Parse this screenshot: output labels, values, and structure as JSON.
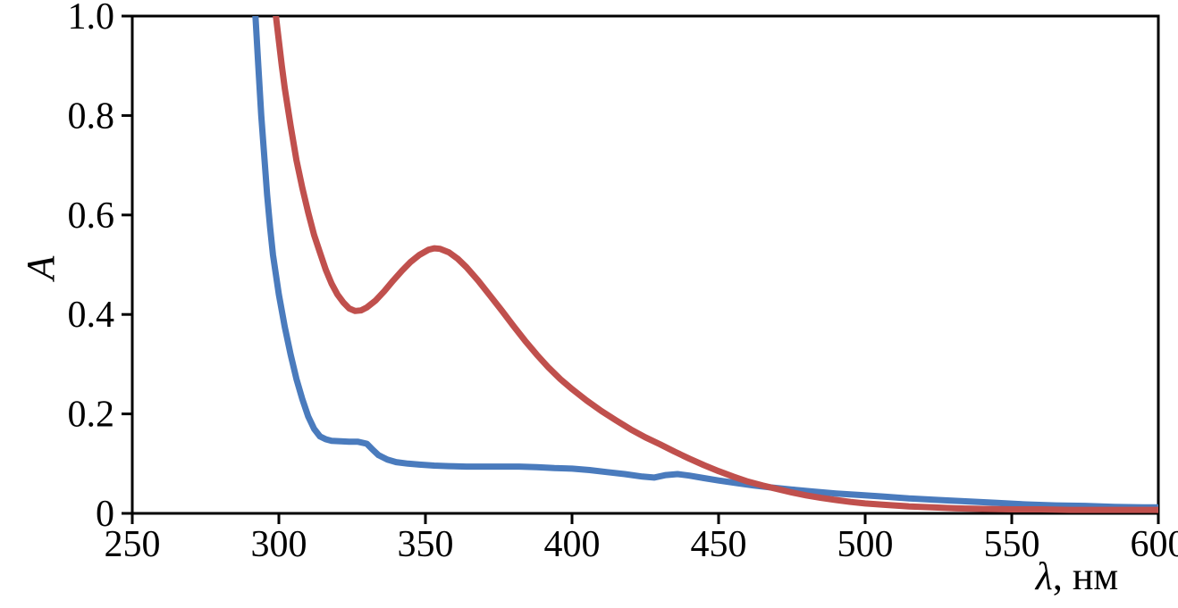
{
  "chart_data": {
    "type": "line",
    "title": "",
    "xlabel": "λ, нм",
    "xlabel_lambda": "λ",
    "xlabel_unit": ", нм",
    "ylabel": "A",
    "xlim": [
      250,
      600
    ],
    "ylim": [
      0,
      1.0
    ],
    "x_ticks": [
      250,
      300,
      350,
      400,
      450,
      500,
      550,
      600
    ],
    "x_tick_labels": [
      "250",
      "300",
      "350",
      "400",
      "450",
      "500",
      "550",
      "600"
    ],
    "y_ticks": [
      0,
      0.2,
      0.4,
      0.6,
      0.8,
      1.0
    ],
    "y_tick_labels": [
      "0",
      "0.2",
      "0.4",
      "0.6",
      "0.8",
      "1.0"
    ],
    "grid": false,
    "legend": "none",
    "frame": "box",
    "axis_color": "#000000",
    "line_width": 7,
    "series": [
      {
        "name": "blue",
        "color": "#4a7bbd",
        "points": [
          [
            291,
            1.12
          ],
          [
            292,
            1.0
          ],
          [
            293,
            0.9
          ],
          [
            294,
            0.8
          ],
          [
            295,
            0.72
          ],
          [
            296,
            0.64
          ],
          [
            297,
            0.575
          ],
          [
            298,
            0.52
          ],
          [
            300,
            0.44
          ],
          [
            302,
            0.375
          ],
          [
            304,
            0.32
          ],
          [
            306,
            0.27
          ],
          [
            308,
            0.23
          ],
          [
            310,
            0.195
          ],
          [
            312,
            0.17
          ],
          [
            314,
            0.155
          ],
          [
            316,
            0.149
          ],
          [
            318,
            0.146
          ],
          [
            321,
            0.145
          ],
          [
            324,
            0.144
          ],
          [
            327,
            0.144
          ],
          [
            330,
            0.14
          ],
          [
            332,
            0.128
          ],
          [
            334,
            0.117
          ],
          [
            337,
            0.108
          ],
          [
            340,
            0.103
          ],
          [
            344,
            0.1
          ],
          [
            348,
            0.098
          ],
          [
            353,
            0.096
          ],
          [
            358,
            0.095
          ],
          [
            364,
            0.094
          ],
          [
            370,
            0.094
          ],
          [
            376,
            0.094
          ],
          [
            382,
            0.094
          ],
          [
            388,
            0.093
          ],
          [
            394,
            0.091
          ],
          [
            400,
            0.09
          ],
          [
            406,
            0.087
          ],
          [
            412,
            0.083
          ],
          [
            418,
            0.079
          ],
          [
            424,
            0.074
          ],
          [
            428,
            0.072
          ],
          [
            432,
            0.077
          ],
          [
            436,
            0.079
          ],
          [
            440,
            0.076
          ],
          [
            445,
            0.071
          ],
          [
            450,
            0.066
          ],
          [
            456,
            0.061
          ],
          [
            462,
            0.056
          ],
          [
            468,
            0.052
          ],
          [
            475,
            0.048
          ],
          [
            482,
            0.044
          ],
          [
            490,
            0.04
          ],
          [
            498,
            0.037
          ],
          [
            506,
            0.034
          ],
          [
            515,
            0.03
          ],
          [
            525,
            0.027
          ],
          [
            535,
            0.024
          ],
          [
            545,
            0.021
          ],
          [
            555,
            0.018
          ],
          [
            565,
            0.016
          ],
          [
            575,
            0.015
          ],
          [
            585,
            0.013
          ],
          [
            595,
            0.012
          ],
          [
            600,
            0.012
          ]
        ]
      },
      {
        "name": "red",
        "color": "#c0504d",
        "points": [
          [
            298,
            1.12
          ],
          [
            299,
            1.0
          ],
          [
            300,
            0.95
          ],
          [
            301,
            0.9
          ],
          [
            302,
            0.855
          ],
          [
            304,
            0.78
          ],
          [
            306,
            0.71
          ],
          [
            308,
            0.655
          ],
          [
            310,
            0.605
          ],
          [
            312,
            0.56
          ],
          [
            314,
            0.525
          ],
          [
            316,
            0.49
          ],
          [
            318,
            0.462
          ],
          [
            320,
            0.44
          ],
          [
            322,
            0.424
          ],
          [
            324,
            0.412
          ],
          [
            326,
            0.407
          ],
          [
            328,
            0.408
          ],
          [
            330,
            0.414
          ],
          [
            333,
            0.428
          ],
          [
            336,
            0.447
          ],
          [
            339,
            0.468
          ],
          [
            342,
            0.488
          ],
          [
            345,
            0.506
          ],
          [
            348,
            0.52
          ],
          [
            351,
            0.53
          ],
          [
            353,
            0.533
          ],
          [
            355,
            0.532
          ],
          [
            358,
            0.525
          ],
          [
            361,
            0.512
          ],
          [
            364,
            0.495
          ],
          [
            368,
            0.468
          ],
          [
            372,
            0.438
          ],
          [
            376,
            0.408
          ],
          [
            380,
            0.377
          ],
          [
            384,
            0.347
          ],
          [
            388,
            0.319
          ],
          [
            392,
            0.293
          ],
          [
            396,
            0.27
          ],
          [
            400,
            0.25
          ],
          [
            405,
            0.227
          ],
          [
            410,
            0.206
          ],
          [
            415,
            0.187
          ],
          [
            420,
            0.169
          ],
          [
            425,
            0.153
          ],
          [
            430,
            0.139
          ],
          [
            435,
            0.124
          ],
          [
            440,
            0.11
          ],
          [
            445,
            0.097
          ],
          [
            450,
            0.085
          ],
          [
            455,
            0.074
          ],
          [
            460,
            0.064
          ],
          [
            465,
            0.056
          ],
          [
            470,
            0.049
          ],
          [
            475,
            0.042
          ],
          [
            480,
            0.036
          ],
          [
            485,
            0.031
          ],
          [
            490,
            0.027
          ],
          [
            495,
            0.023
          ],
          [
            500,
            0.02
          ],
          [
            507,
            0.017
          ],
          [
            515,
            0.014
          ],
          [
            523,
            0.012
          ],
          [
            531,
            0.01
          ],
          [
            540,
            0.009
          ],
          [
            550,
            0.008
          ],
          [
            560,
            0.008
          ],
          [
            570,
            0.007
          ],
          [
            580,
            0.007
          ],
          [
            590,
            0.007
          ],
          [
            600,
            0.007
          ]
        ]
      }
    ]
  }
}
